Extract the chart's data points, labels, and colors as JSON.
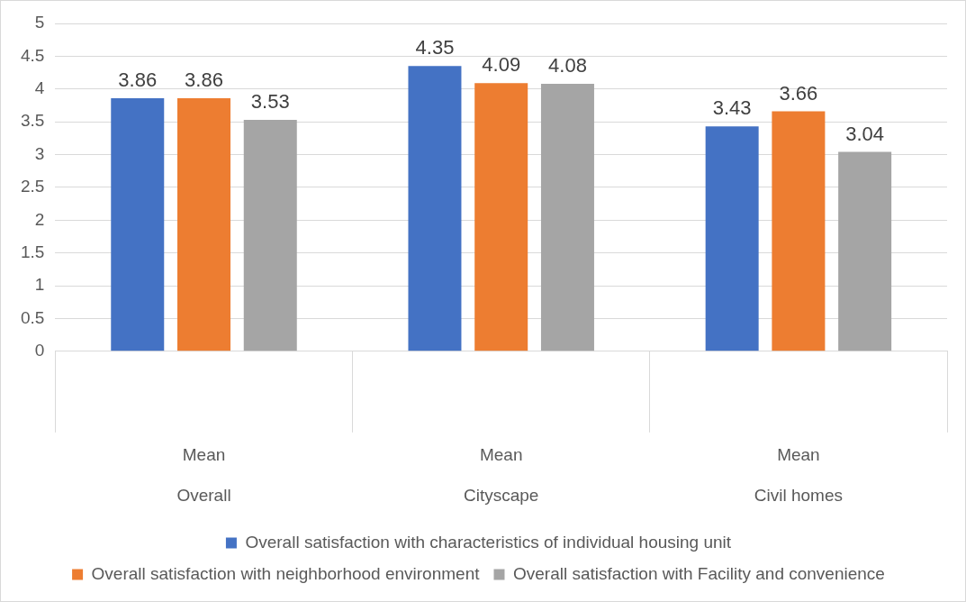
{
  "chart_data": {
    "type": "bar",
    "categories": [
      "Mean\nOverall",
      "Mean\nCityscape",
      "Mean\nCivil homes"
    ],
    "series": [
      {
        "name": "Overall satisfaction with characteristics of individual housing unit",
        "color": "#4472c4",
        "values": [
          3.86,
          4.35,
          3.43
        ]
      },
      {
        "name": "Overall satisfaction with neighborhood environment",
        "color": "#ed7d31",
        "values": [
          3.86,
          4.09,
          3.66
        ]
      },
      {
        "name": "Overall satisfaction with Facility and convenience",
        "color": "#a5a5a5",
        "values": [
          3.53,
          4.08,
          3.04
        ]
      }
    ],
    "ylim": [
      0,
      5
    ],
    "yticks": [
      0,
      0.5,
      1,
      1.5,
      2,
      2.5,
      3,
      3.5,
      4,
      4.5,
      5
    ],
    "grid": "y",
    "legend": "bottom",
    "data_labels": true
  }
}
